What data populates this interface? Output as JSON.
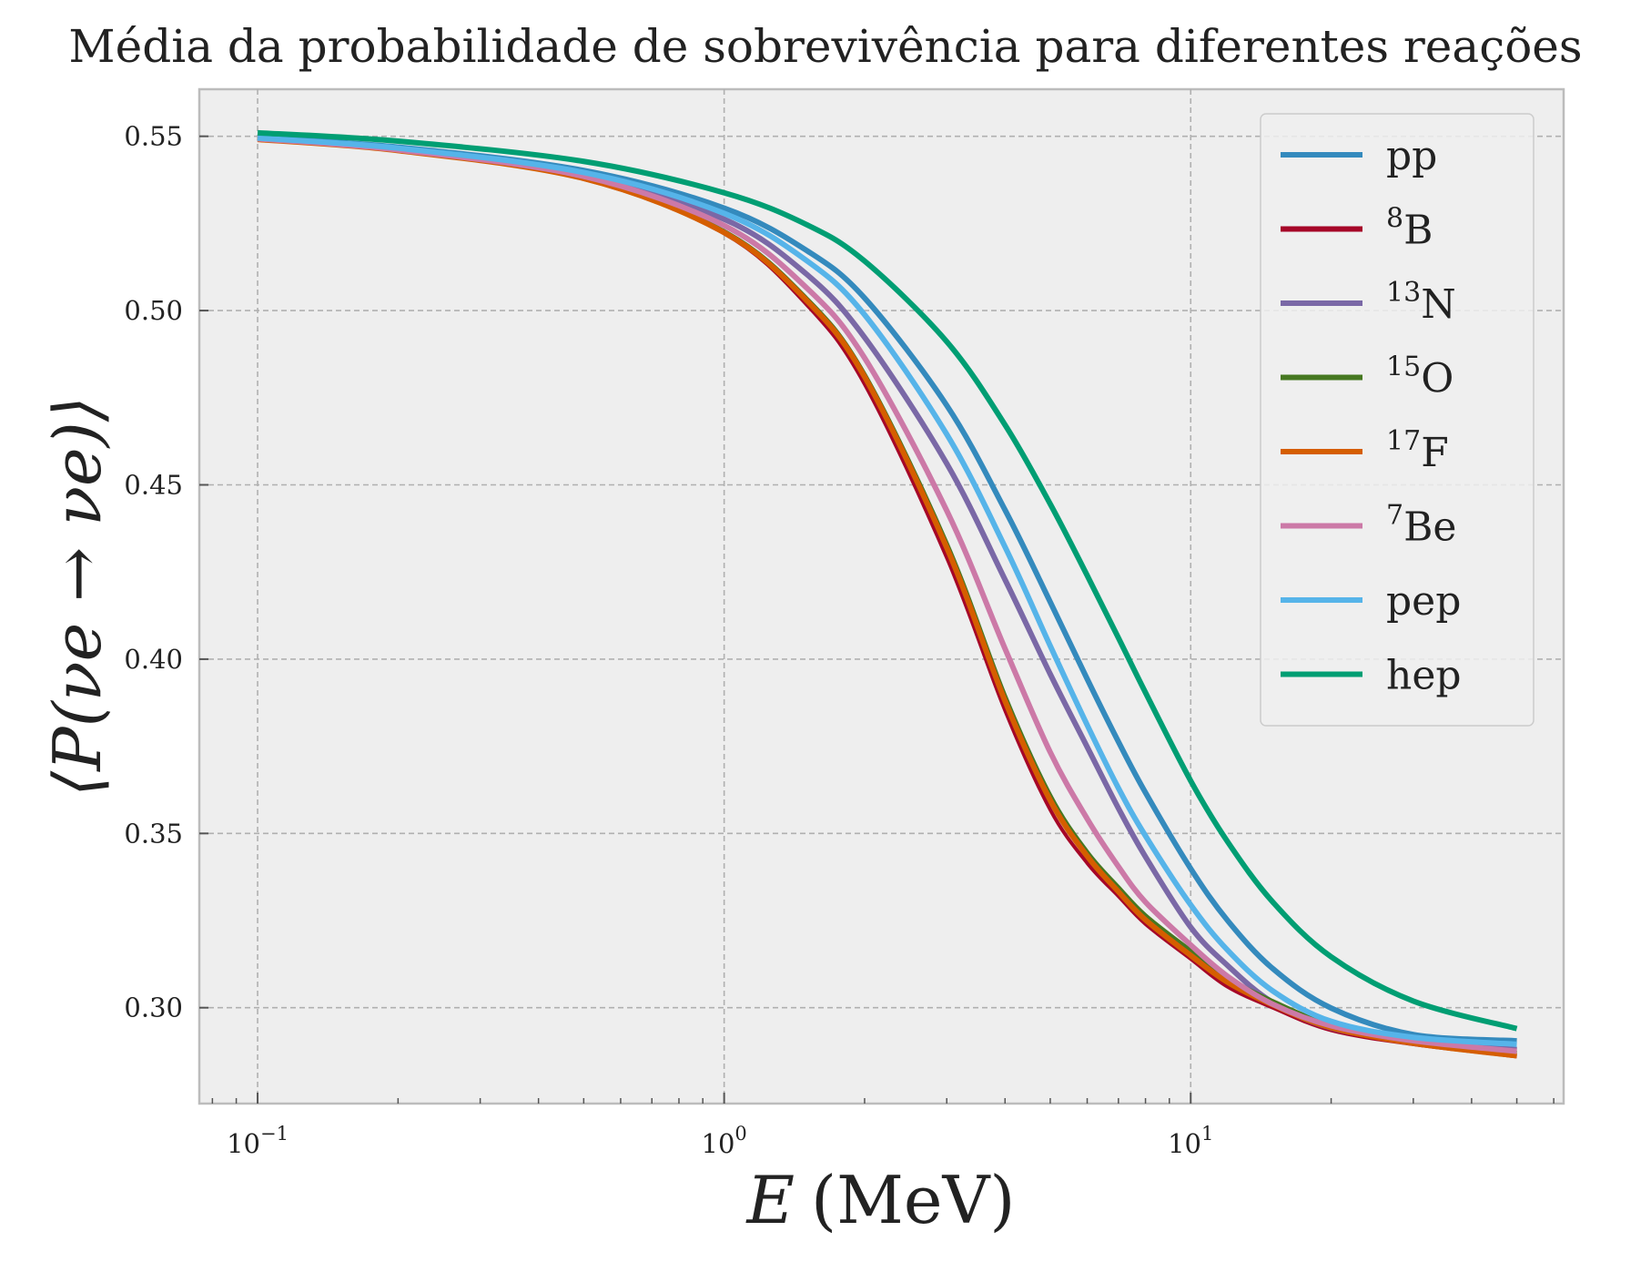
{
  "chart_data": {
    "type": "line",
    "title": "Média da probabilidade de sobrevivência para diferentes reações",
    "xlabel": {
      "var": "E",
      "unit": "(MeV)"
    },
    "ylabel": "⟨P(νe → νe)⟩",
    "xscale": "log",
    "xlim": [
      0.075,
      63
    ],
    "ylim": [
      0.2725,
      0.5635
    ],
    "x_ticks": [
      {
        "value": 0.1,
        "base": "10",
        "exp": "−1"
      },
      {
        "value": 1,
        "base": "10",
        "exp": "0"
      },
      {
        "value": 10,
        "base": "10",
        "exp": "1"
      }
    ],
    "y_ticks": [
      {
        "value": 0.3,
        "label": "0.30"
      },
      {
        "value": 0.35,
        "label": "0.35"
      },
      {
        "value": 0.4,
        "label": "0.40"
      },
      {
        "value": 0.45,
        "label": "0.45"
      },
      {
        "value": 0.5,
        "label": "0.50"
      },
      {
        "value": 0.55,
        "label": "0.55"
      }
    ],
    "grid": true,
    "legend_position": "top-right",
    "background": "#eeeeee",
    "series": [
      {
        "name": "pp",
        "sup": "",
        "color": "#348abd",
        "width": 6,
        "x": [
          0.1,
          0.2,
          0.5,
          1,
          1.5,
          2,
          3,
          4,
          5,
          6,
          7,
          8,
          10,
          12,
          15,
          20,
          30,
          50
        ],
        "y": [
          0.5496,
          0.5469,
          0.5402,
          0.5294,
          0.5173,
          0.5036,
          0.4728,
          0.4428,
          0.4164,
          0.3943,
          0.3763,
          0.3617,
          0.3399,
          0.325,
          0.3112,
          0.2999,
          0.2923,
          0.2905
        ]
      },
      {
        "name": "B",
        "sup": "8",
        "color": "#a60628",
        "width": 4,
        "x": [
          0.1,
          0.2,
          0.5,
          1,
          1.5,
          2,
          3,
          4,
          5,
          6,
          7,
          8,
          10,
          12,
          15,
          20,
          30,
          50
        ],
        "y": [
          0.5491,
          0.5458,
          0.5377,
          0.5221,
          0.5018,
          0.4789,
          0.4291,
          0.3853,
          0.3568,
          0.3415,
          0.332,
          0.324,
          0.314,
          0.306,
          0.3,
          0.2935,
          0.2895,
          0.286
        ]
      },
      {
        "name": "N",
        "sup": "13",
        "color": "#7a68a6",
        "width": 6,
        "x": [
          0.1,
          0.2,
          0.5,
          1,
          1.5,
          2,
          3,
          4,
          5,
          6,
          7,
          8,
          10,
          12,
          15,
          20,
          30,
          50
        ],
        "y": [
          0.5494,
          0.5462,
          0.5383,
          0.5262,
          0.5105,
          0.4923,
          0.4561,
          0.4228,
          0.3957,
          0.3748,
          0.3572,
          0.3433,
          0.3231,
          0.3121,
          0.3015,
          0.2942,
          0.2905,
          0.288
        ]
      },
      {
        "name": "O",
        "sup": "15",
        "color": "#467821",
        "width": 5,
        "x": [
          0.1,
          0.2,
          0.5,
          1,
          1.5,
          2,
          3,
          4,
          5,
          6,
          7,
          8,
          10,
          12,
          15,
          20,
          30,
          50
        ],
        "y": [
          0.5492,
          0.546,
          0.538,
          0.5227,
          0.5035,
          0.4816,
          0.4331,
          0.3893,
          0.3608,
          0.3446,
          0.3345,
          0.3264,
          0.3163,
          0.3085,
          0.3018,
          0.2951,
          0.2905,
          0.287
        ]
      },
      {
        "name": "F",
        "sup": "17",
        "color": "#d55e00",
        "width": 6,
        "x": [
          0.1,
          0.2,
          0.5,
          1,
          1.5,
          2,
          3,
          4,
          5,
          6,
          7,
          8,
          10,
          12,
          15,
          20,
          30,
          50
        ],
        "y": [
          0.5491,
          0.5459,
          0.5379,
          0.5224,
          0.503,
          0.481,
          0.432,
          0.388,
          0.3595,
          0.3435,
          0.3333,
          0.3252,
          0.315,
          0.3073,
          0.3008,
          0.2943,
          0.2898,
          0.2862
        ]
      },
      {
        "name": "Be",
        "sup": "7",
        "color": "#cc79a7",
        "width": 6,
        "x": [
          0.1,
          0.2,
          0.5,
          1,
          1.5,
          2,
          3,
          4,
          5,
          6,
          7,
          8,
          10,
          12,
          15,
          20,
          30,
          50
        ],
        "y": [
          0.5493,
          0.5461,
          0.5385,
          0.5244,
          0.5066,
          0.4864,
          0.4426,
          0.403,
          0.3733,
          0.3542,
          0.3405,
          0.3303,
          0.318,
          0.309,
          0.301,
          0.2948,
          0.2905,
          0.2875
        ]
      },
      {
        "name": "pep",
        "sup": "",
        "color": "#56b4e9",
        "width": 6,
        "x": [
          0.1,
          0.2,
          0.5,
          1,
          1.5,
          2,
          3,
          4,
          5,
          6,
          7,
          8,
          10,
          12,
          15,
          20,
          30,
          50
        ],
        "y": [
          0.5495,
          0.5466,
          0.5396,
          0.5279,
          0.5144,
          0.4988,
          0.4645,
          0.4322,
          0.4038,
          0.3811,
          0.363,
          0.3493,
          0.3295,
          0.3165,
          0.3048,
          0.2961,
          0.2915,
          0.2895
        ]
      },
      {
        "name": "hep",
        "sup": "",
        "color": "#009e73",
        "width": 6,
        "x": [
          0.1,
          0.2,
          0.5,
          1,
          1.5,
          2,
          3,
          4,
          5,
          6,
          7,
          8,
          10,
          12,
          15,
          20,
          30,
          50
        ],
        "y": [
          0.551,
          0.5486,
          0.5428,
          0.5338,
          0.5247,
          0.5142,
          0.4911,
          0.4672,
          0.4445,
          0.424,
          0.4061,
          0.3904,
          0.3651,
          0.3476,
          0.3303,
          0.3146,
          0.3019,
          0.294
        ]
      }
    ]
  }
}
